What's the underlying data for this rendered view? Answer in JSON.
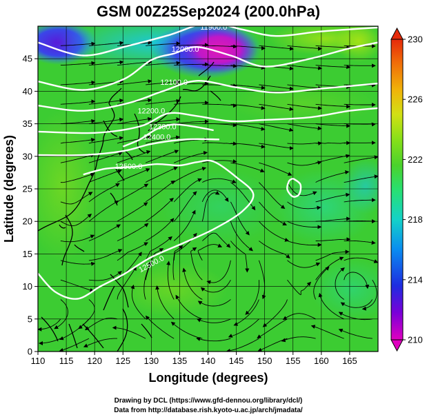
{
  "chart_data": {
    "type": "heatmap",
    "title": "GSM 00Z25Sep2024 (200.0hPa)",
    "xlabel": "Longitude (degrees)",
    "ylabel": "Latitude  (degrees)",
    "xlim": [
      110,
      170
    ],
    "ylim": [
      0,
      50
    ],
    "x_ticks": [
      110,
      115,
      120,
      125,
      130,
      135,
      140,
      145,
      150,
      155,
      160,
      165
    ],
    "y_ticks": [
      0,
      5,
      10,
      15,
      20,
      25,
      30,
      35,
      40,
      45
    ],
    "colorbar": {
      "min": 210,
      "max": 230,
      "ticks": [
        210,
        214,
        218,
        222,
        226,
        230
      ],
      "colors": [
        "#e000c0",
        "#7a00d8",
        "#1e2ce0",
        "#0a8cf0",
        "#14d2c8",
        "#28e070",
        "#4ad22c",
        "#8ae018",
        "#d2e014",
        "#f0b40a",
        "#f06e0a",
        "#e62a0a"
      ]
    },
    "contours": [
      {
        "label": "11900.0",
        "points": [
          [
            110,
            47.5
          ],
          [
            118,
            45.5
          ],
          [
            126,
            47.0
          ],
          [
            133,
            48.6
          ],
          [
            140,
            50.5
          ],
          [
            146,
            49.5
          ],
          [
            152,
            48.5
          ],
          [
            160,
            49.2
          ],
          [
            170,
            49.8
          ]
        ]
      },
      {
        "label": "12000.0",
        "points": [
          [
            110,
            41.5
          ],
          [
            118,
            40.2
          ],
          [
            125,
            41.8
          ],
          [
            130,
            44.8
          ],
          [
            134,
            45.8
          ],
          [
            138,
            46.8
          ],
          [
            144,
            45.5
          ],
          [
            150,
            43.8
          ],
          [
            158,
            45.0
          ],
          [
            165,
            46.6
          ],
          [
            170,
            47.5
          ]
        ]
      },
      {
        "label": "12100.0",
        "points": [
          [
            110,
            37.8
          ],
          [
            118,
            37.0
          ],
          [
            126,
            38.2
          ],
          [
            132,
            40.0
          ],
          [
            138,
            41.6
          ],
          [
            145,
            40.6
          ],
          [
            152,
            39.8
          ],
          [
            160,
            40.4
          ],
          [
            170,
            41.2
          ]
        ]
      },
      {
        "label": "12200.0",
        "points": [
          [
            110,
            33.8
          ],
          [
            120,
            33.6
          ],
          [
            128,
            34.6
          ],
          [
            133,
            36.6
          ],
          [
            138,
            36.2
          ],
          [
            144,
            35.4
          ],
          [
            150,
            35.6
          ],
          [
            158,
            36.0
          ],
          [
            165,
            37.0
          ],
          [
            170,
            37.4
          ]
        ]
      },
      {
        "label": "12300.0",
        "points": [
          [
            125,
            31.5
          ],
          [
            128,
            32.6
          ],
          [
            131,
            34.2
          ],
          [
            134,
            34.9
          ],
          [
            138,
            34.5
          ],
          [
            141,
            34.0
          ]
        ]
      },
      {
        "label": "12400.0",
        "points": [
          [
            110,
            30.2
          ],
          [
            118,
            30.2
          ],
          [
            125,
            30.8
          ],
          [
            130,
            31.9
          ],
          [
            136,
            32.6
          ],
          [
            142,
            32.6
          ]
        ]
      },
      {
        "label": "12500.0",
        "points": [
          [
            118,
            27.2
          ],
          [
            122,
            28.1
          ],
          [
            127,
            28.4
          ],
          [
            131,
            28.8
          ],
          [
            135,
            28.6
          ],
          [
            138,
            29.1
          ],
          [
            141,
            29.2
          ],
          [
            145,
            26.8
          ],
          [
            148,
            24.2
          ],
          [
            146,
            21.5
          ],
          [
            141,
            18.8
          ],
          [
            136,
            16.8
          ],
          [
            130,
            14.5
          ],
          [
            125,
            11.8
          ],
          [
            121,
            10.0
          ],
          [
            117,
            8.1
          ],
          [
            113,
            9.2
          ],
          [
            110,
            12.0
          ]
        ]
      },
      {
        "label": "",
        "points": [
          [
            155.0,
            26.6
          ],
          [
            156.3,
            25.7
          ],
          [
            156.1,
            24.2
          ],
          [
            155.0,
            23.8
          ],
          [
            154.0,
            24.9
          ],
          [
            154.3,
            26.2
          ],
          [
            155.0,
            26.6
          ]
        ]
      }
    ],
    "contour_label_text": [
      "11900.0",
      "12000.0",
      "12100.0",
      "12200.0",
      "12300.0",
      "12400.0",
      "12500.0",
      "12500.0"
    ],
    "grid": true,
    "legend": "colorbar-right"
  },
  "credits": {
    "line1": "Drawing by DCL (https://www.gfd-dennou.org/library/dcl/)",
    "line2": "Data from http://database.rish.kyoto-u.ac.jp/arch/jmadata/"
  }
}
